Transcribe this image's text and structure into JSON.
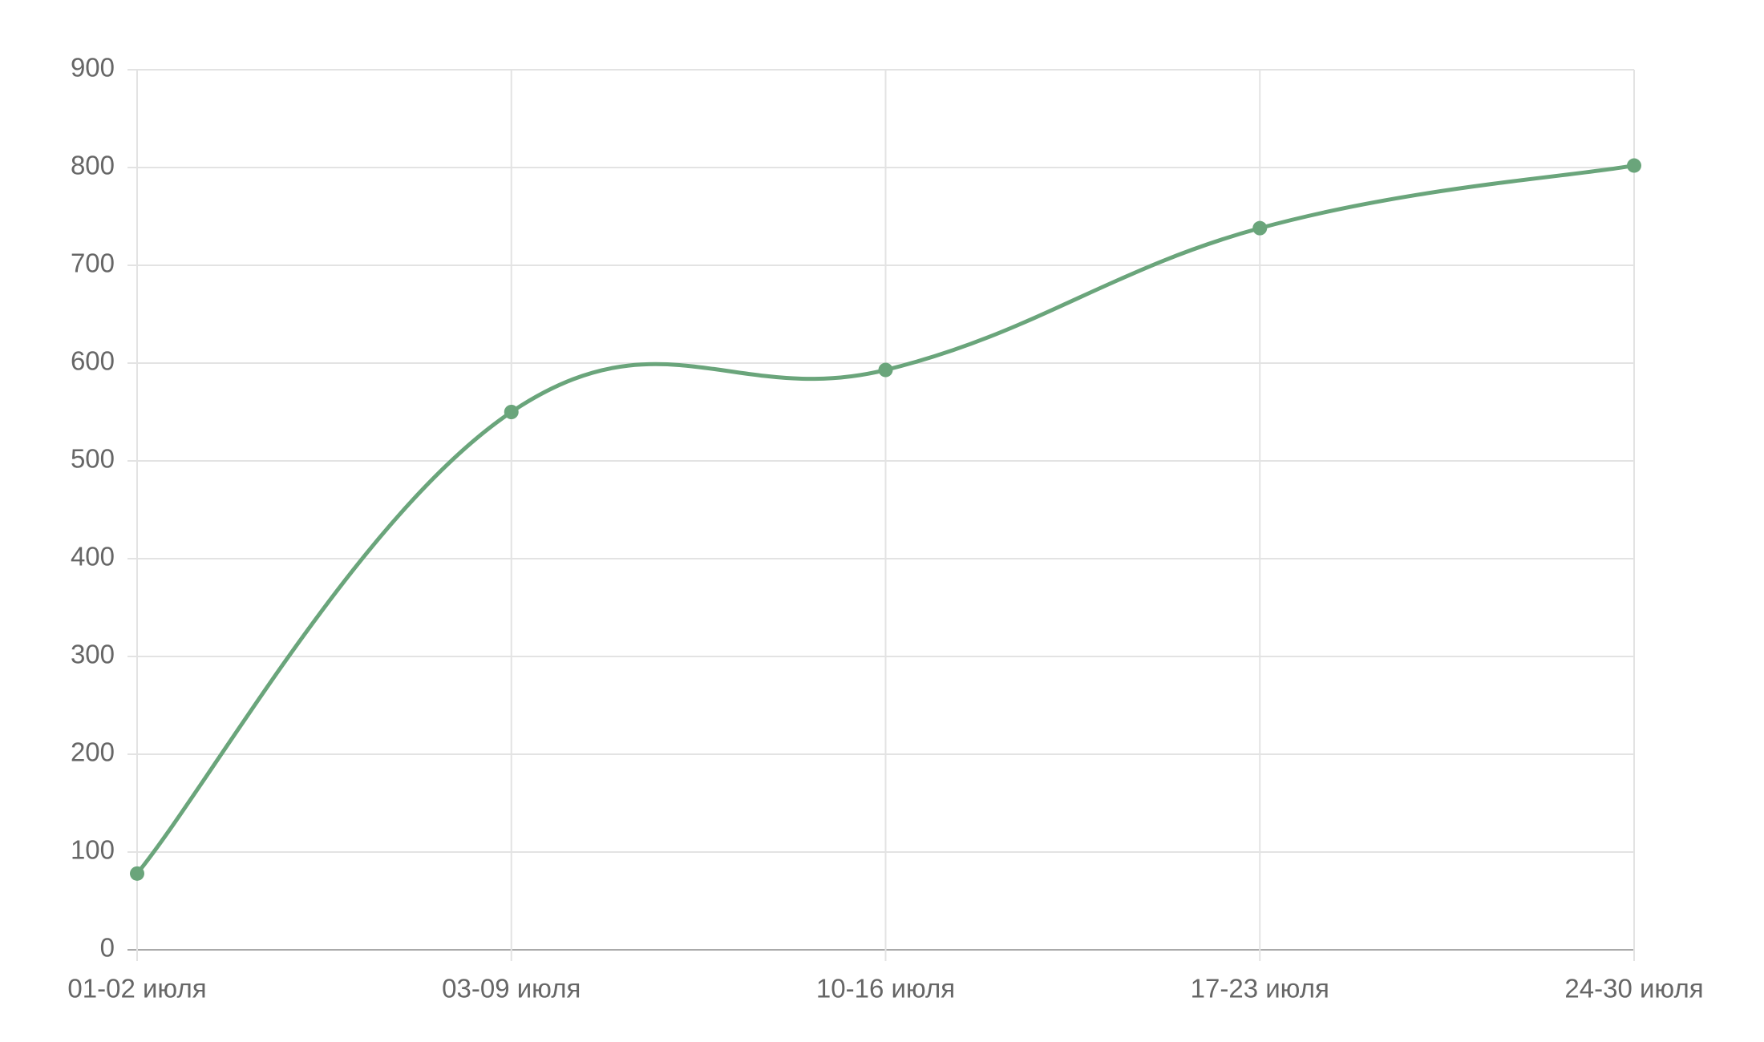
{
  "chart_data": {
    "type": "line",
    "categories": [
      "01-02 июля",
      "03-09 июля",
      "10-16 июля",
      "17-23 июля",
      "24-30 июля"
    ],
    "series": [
      {
        "color": "#6aa57b",
        "values": [
          78,
          550,
          593,
          738,
          802
        ]
      }
    ],
    "ylim": [
      0,
      900
    ],
    "yticks": [
      0,
      100,
      200,
      300,
      400,
      500,
      600,
      700,
      800,
      900
    ],
    "grid": true
  }
}
